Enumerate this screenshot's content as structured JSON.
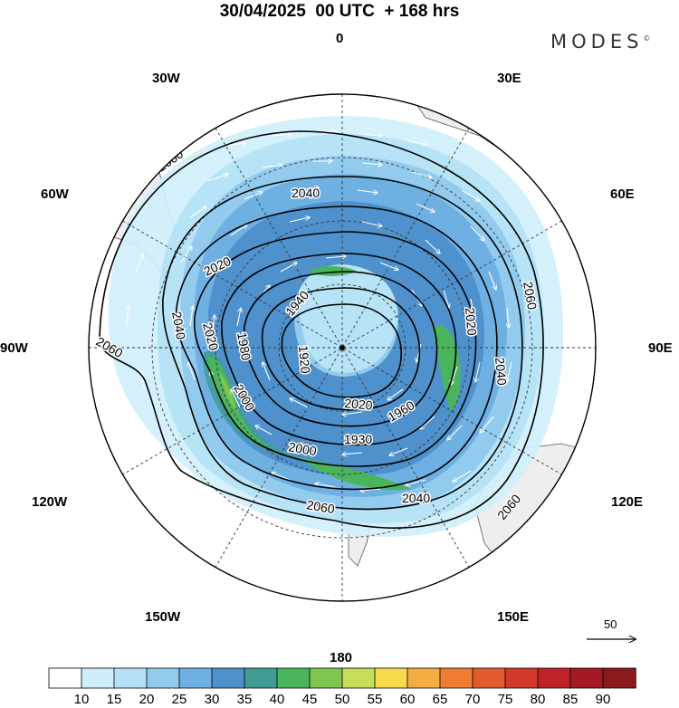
{
  "header": {
    "title": "30/04/2025  00 UTC  + 168 hrs",
    "brand": "MODES",
    "brand_mark": "©"
  },
  "map": {
    "projection": "south-polar-stereographic",
    "longitude_labels": {
      "top": "0",
      "top_left": "30W",
      "top_right": "30E",
      "upper_left": "60W",
      "upper_right": "60E",
      "left": "90W",
      "right": "90E",
      "lower_left": "120W",
      "lower_right": "120E",
      "bottom_left": "150W",
      "bottom_right": "150E",
      "bottom": "180"
    },
    "contour_labels": [
      {
        "text": "2060",
        "pos": "a"
      },
      {
        "text": "2040",
        "pos": "b"
      },
      {
        "text": "2020",
        "pos": "c"
      },
      {
        "text": "2040",
        "pos": "d"
      },
      {
        "text": "2060",
        "pos": "e"
      },
      {
        "text": "2020",
        "pos": "f"
      },
      {
        "text": "1980",
        "pos": "g"
      },
      {
        "text": "1940",
        "pos": "h"
      },
      {
        "text": "1920",
        "pos": "i"
      },
      {
        "text": "2060",
        "pos": "j"
      },
      {
        "text": "2020",
        "pos": "k"
      },
      {
        "text": "2040",
        "pos": "l"
      },
      {
        "text": "2000",
        "pos": "m"
      },
      {
        "text": "1960",
        "pos": "n"
      },
      {
        "text": "1930",
        "pos": "o"
      },
      {
        "text": "2000",
        "pos": "p"
      },
      {
        "text": "2060",
        "pos": "q"
      },
      {
        "text": "2040",
        "pos": "r"
      },
      {
        "text": "2060",
        "pos": "s"
      },
      {
        "text": "2020",
        "pos": "t"
      }
    ],
    "vector_scale": {
      "value": "50"
    }
  },
  "colorbar": {
    "ticks": [
      "10",
      "15",
      "20",
      "25",
      "30",
      "35",
      "40",
      "45",
      "50",
      "55",
      "60",
      "65",
      "70",
      "75",
      "80",
      "85",
      "90"
    ],
    "colors": [
      "#ffffff",
      "#cfeefb",
      "#b4e1f6",
      "#93cbef",
      "#6fb0e3",
      "#4f91cc",
      "#3f9c94",
      "#4ab55d",
      "#80c550",
      "#c6dd5a",
      "#f5da4e",
      "#f4ad41",
      "#ef7c33",
      "#e35a2f",
      "#d43a2c",
      "#bf2228",
      "#a31a22",
      "#8b1a1c"
    ]
  }
}
